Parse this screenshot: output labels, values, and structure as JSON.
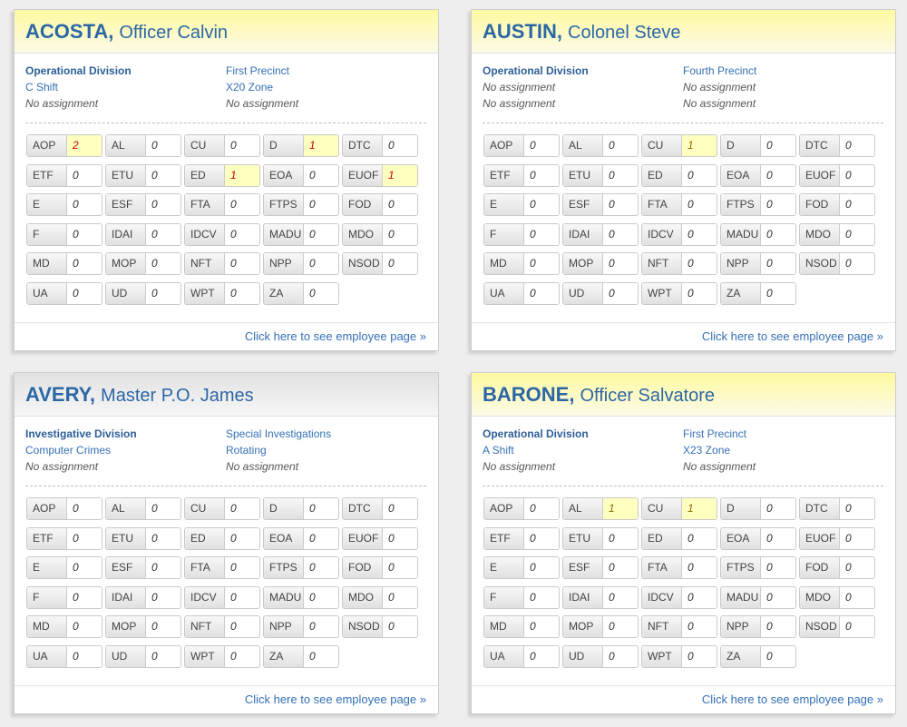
{
  "cards": [
    {
      "last_name": "ACOSTA,",
      "rank_name": "Officer Calvin",
      "header_gradient": [
        "#fff9a0",
        "#fbfbe8"
      ],
      "alert_text_color": "#cc0000",
      "info": [
        [
          {
            "text": "Operational Division",
            "assigned": true
          },
          {
            "text": "First Precinct",
            "assigned": true
          }
        ],
        [
          {
            "text": "C Shift",
            "assigned": true
          },
          {
            "text": "X20 Zone",
            "assigned": true
          }
        ],
        [
          {
            "text": "No assignment",
            "assigned": false
          },
          {
            "text": "No assignment",
            "assigned": false
          }
        ]
      ],
      "counts": [
        [
          "AOP",
          2
        ],
        [
          "AL",
          0
        ],
        [
          "CU",
          0
        ],
        [
          "D",
          1
        ],
        [
          "DTC",
          0
        ],
        [
          "ETF",
          0
        ],
        [
          "ETU",
          0
        ],
        [
          "ED",
          1
        ],
        [
          "EOA",
          0
        ],
        [
          "EUOF",
          1
        ],
        [
          "E",
          0
        ],
        [
          "ESF",
          0
        ],
        [
          "FTA",
          0
        ],
        [
          "FTPS",
          0
        ],
        [
          "FOD",
          0
        ],
        [
          "F",
          0
        ],
        [
          "IDAI",
          0
        ],
        [
          "IDCV",
          0
        ],
        [
          "MADU",
          0
        ],
        [
          "MDO",
          0
        ],
        [
          "MD",
          0
        ],
        [
          "MOP",
          0
        ],
        [
          "NFT",
          0
        ],
        [
          "NPP",
          0
        ],
        [
          "NSOD",
          0
        ],
        [
          "UA",
          0
        ],
        [
          "UD",
          0
        ],
        [
          "WPT",
          0
        ],
        [
          "ZA",
          0
        ]
      ],
      "footer_link": "Click here to see employee page »"
    },
    {
      "last_name": "AUSTIN,",
      "rank_name": "Colonel Steve",
      "header_gradient": [
        "#fff9a0",
        "#fbfbe8"
      ],
      "alert_text_color": "#8c6a00",
      "info": [
        [
          {
            "text": "Operational Division",
            "assigned": true
          },
          {
            "text": "Fourth Precinct",
            "assigned": true
          }
        ],
        [
          {
            "text": "No assignment",
            "assigned": false
          },
          {
            "text": "No assignment",
            "assigned": false
          }
        ],
        [
          {
            "text": "No assignment",
            "assigned": false
          },
          {
            "text": "No assignment",
            "assigned": false
          }
        ]
      ],
      "counts": [
        [
          "AOP",
          0
        ],
        [
          "AL",
          0
        ],
        [
          "CU",
          1
        ],
        [
          "D",
          0
        ],
        [
          "DTC",
          0
        ],
        [
          "ETF",
          0
        ],
        [
          "ETU",
          0
        ],
        [
          "ED",
          0
        ],
        [
          "EOA",
          0
        ],
        [
          "EUOF",
          0
        ],
        [
          "E",
          0
        ],
        [
          "ESF",
          0
        ],
        [
          "FTA",
          0
        ],
        [
          "FTPS",
          0
        ],
        [
          "FOD",
          0
        ],
        [
          "F",
          0
        ],
        [
          "IDAI",
          0
        ],
        [
          "IDCV",
          0
        ],
        [
          "MADU",
          0
        ],
        [
          "MDO",
          0
        ],
        [
          "MD",
          0
        ],
        [
          "MOP",
          0
        ],
        [
          "NFT",
          0
        ],
        [
          "NPP",
          0
        ],
        [
          "NSOD",
          0
        ],
        [
          "UA",
          0
        ],
        [
          "UD",
          0
        ],
        [
          "WPT",
          0
        ],
        [
          "ZA",
          0
        ]
      ],
      "footer_link": "Click here to see employee page »"
    },
    {
      "last_name": "AVERY,",
      "rank_name": "Master P.O. James",
      "header_gradient": [
        "#e2e2e2",
        "#f6f6f6"
      ],
      "alert_text_color": "#8c6a00",
      "info": [
        [
          {
            "text": "Investigative Division",
            "assigned": true
          },
          {
            "text": "Special Investigations",
            "assigned": true
          }
        ],
        [
          {
            "text": "Computer Crimes",
            "assigned": true
          },
          {
            "text": "Rotating",
            "assigned": true
          }
        ],
        [
          {
            "text": "No assignment",
            "assigned": false
          },
          {
            "text": "No assignment",
            "assigned": false
          }
        ]
      ],
      "counts": [
        [
          "AOP",
          0
        ],
        [
          "AL",
          0
        ],
        [
          "CU",
          0
        ],
        [
          "D",
          0
        ],
        [
          "DTC",
          0
        ],
        [
          "ETF",
          0
        ],
        [
          "ETU",
          0
        ],
        [
          "ED",
          0
        ],
        [
          "EOA",
          0
        ],
        [
          "EUOF",
          0
        ],
        [
          "E",
          0
        ],
        [
          "ESF",
          0
        ],
        [
          "FTA",
          0
        ],
        [
          "FTPS",
          0
        ],
        [
          "FOD",
          0
        ],
        [
          "F",
          0
        ],
        [
          "IDAI",
          0
        ],
        [
          "IDCV",
          0
        ],
        [
          "MADU",
          0
        ],
        [
          "MDO",
          0
        ],
        [
          "MD",
          0
        ],
        [
          "MOP",
          0
        ],
        [
          "NFT",
          0
        ],
        [
          "NPP",
          0
        ],
        [
          "NSOD",
          0
        ],
        [
          "UA",
          0
        ],
        [
          "UD",
          0
        ],
        [
          "WPT",
          0
        ],
        [
          "ZA",
          0
        ]
      ],
      "footer_link": "Click here to see employee page »"
    },
    {
      "last_name": "BARONE,",
      "rank_name": "Officer Salvatore",
      "header_gradient": [
        "#fff9a0",
        "#fbfbe8"
      ],
      "alert_text_color": "#8c6a00",
      "info": [
        [
          {
            "text": "Operational Division",
            "assigned": true
          },
          {
            "text": "First Precinct",
            "assigned": true
          }
        ],
        [
          {
            "text": "A Shift",
            "assigned": true
          },
          {
            "text": "X23 Zone",
            "assigned": true
          }
        ],
        [
          {
            "text": "No assignment",
            "assigned": false
          },
          {
            "text": "No assignment",
            "assigned": false
          }
        ]
      ],
      "counts": [
        [
          "AOP",
          0
        ],
        [
          "AL",
          1
        ],
        [
          "CU",
          1
        ],
        [
          "D",
          0
        ],
        [
          "DTC",
          0
        ],
        [
          "ETF",
          0
        ],
        [
          "ETU",
          0
        ],
        [
          "ED",
          0
        ],
        [
          "EOA",
          0
        ],
        [
          "EUOF",
          0
        ],
        [
          "E",
          0
        ],
        [
          "ESF",
          0
        ],
        [
          "FTA",
          0
        ],
        [
          "FTPS",
          0
        ],
        [
          "FOD",
          0
        ],
        [
          "F",
          0
        ],
        [
          "IDAI",
          0
        ],
        [
          "IDCV",
          0
        ],
        [
          "MADU",
          0
        ],
        [
          "MDO",
          0
        ],
        [
          "MD",
          0
        ],
        [
          "MOP",
          0
        ],
        [
          "NFT",
          0
        ],
        [
          "NPP",
          0
        ],
        [
          "NSOD",
          0
        ],
        [
          "UA",
          0
        ],
        [
          "UD",
          0
        ],
        [
          "WPT",
          0
        ],
        [
          "ZA",
          0
        ]
      ],
      "footer_link": "Click here to see employee page »"
    }
  ]
}
